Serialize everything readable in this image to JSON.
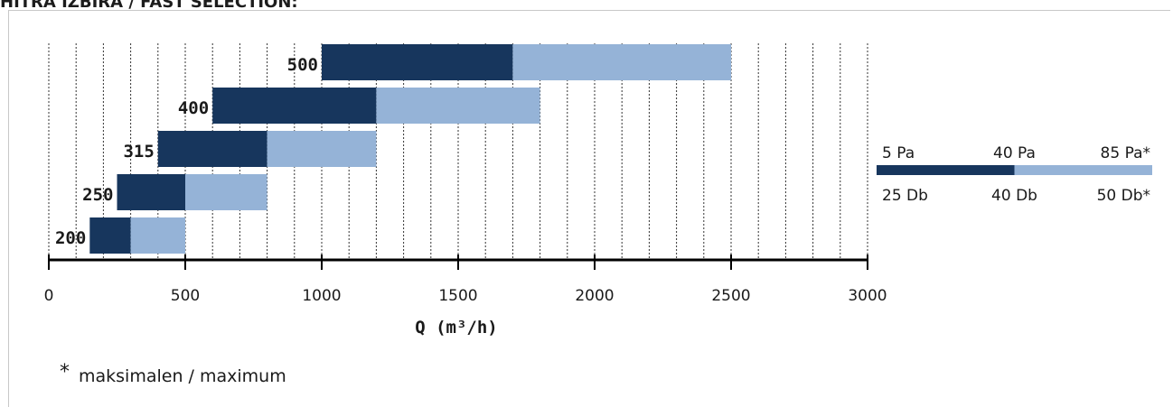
{
  "title": "HITRA IZBIRA / FAST SELECTION:",
  "footnote": {
    "marker": "*",
    "text": "maksimalen / maximum"
  },
  "colors": {
    "dark": "#17365d",
    "light": "#95b3d7",
    "grid": "#333333",
    "axis": "#000000"
  },
  "legend": {
    "top_labels": [
      "5 Pa",
      "40 Pa",
      "85 Pa*"
    ],
    "bottom_labels": [
      "25 Db",
      "40 Db",
      "50 Db*"
    ],
    "dark_fraction": 0.5
  },
  "chart_data": {
    "type": "bar",
    "orientation": "horizontal",
    "title": "",
    "xlabel": "Q (m³/h)",
    "ylabel": "",
    "xlim": [
      0,
      3000
    ],
    "xticks": [
      0,
      500,
      1000,
      1500,
      2000,
      2500,
      3000
    ],
    "grid": "vertical dotted",
    "categories": [
      "500",
      "400",
      "315",
      "250",
      "200"
    ],
    "bars": [
      {
        "category": "500",
        "start": 1000,
        "mid": 1700,
        "end": 2500
      },
      {
        "category": "400",
        "start": 600,
        "mid": 1200,
        "end": 1800
      },
      {
        "category": "315",
        "start": 400,
        "mid": 800,
        "end": 1200
      },
      {
        "category": "250",
        "start": 250,
        "mid": 500,
        "end": 800
      },
      {
        "category": "200",
        "start": 150,
        "mid": 300,
        "end": 500
      }
    ]
  }
}
